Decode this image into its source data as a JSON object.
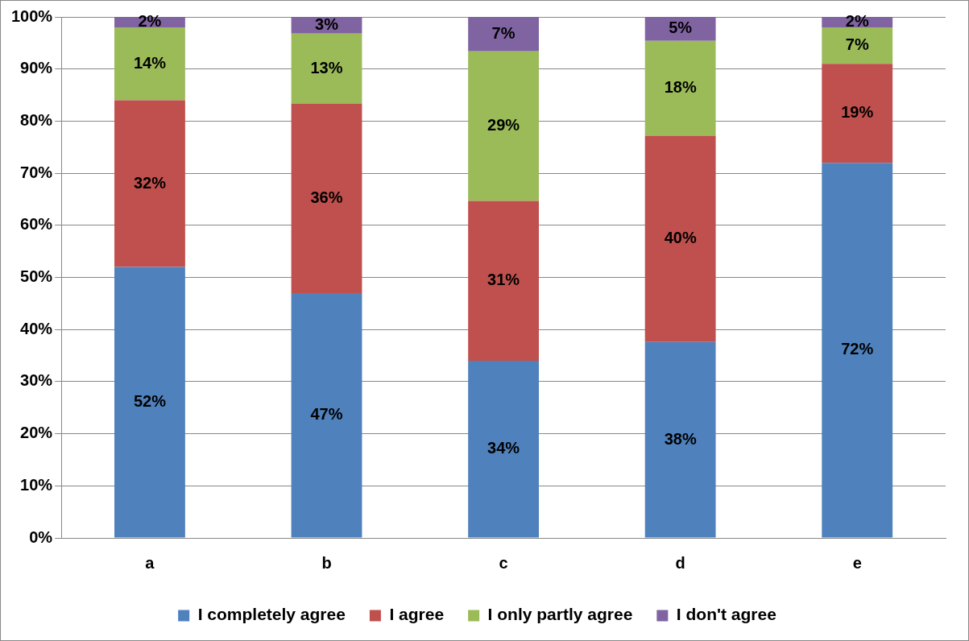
{
  "chart_data": {
    "type": "bar",
    "stacked": true,
    "categories": [
      "a",
      "b",
      "c",
      "d",
      "e"
    ],
    "series": [
      {
        "name": "I completely agree",
        "color": "#4f81bd",
        "values": [
          52,
          47,
          34,
          37.6,
          72
        ],
        "value_labels": [
          "52%",
          "47%",
          "34%",
          "38%",
          "72%"
        ]
      },
      {
        "name": "I agree",
        "color": "#c0504d",
        "values": [
          32,
          36.4,
          30.7,
          39.6,
          19
        ],
        "value_labels": [
          "32%",
          "36%",
          "31%",
          "40%",
          "19%"
        ]
      },
      {
        "name": "I only partly agree",
        "color": "#9bbb59",
        "values": [
          14,
          13.4,
          28.7,
          18.2,
          7
        ],
        "value_labels": [
          "14%",
          "13%",
          "29%",
          "18%",
          "7%"
        ]
      },
      {
        "name": "I don't agree",
        "color": "#8064a2",
        "values": [
          2,
          3.2,
          6.6,
          4.6,
          2
        ],
        "value_labels": [
          "2%",
          "3%",
          "7%",
          "5%",
          "2%"
        ]
      }
    ],
    "ylim": [
      0,
      100
    ],
    "yticks": [
      {
        "value": 0,
        "label": "0%"
      },
      {
        "value": 10,
        "label": "10%"
      },
      {
        "value": 20,
        "label": "20%"
      },
      {
        "value": 30,
        "label": "30%"
      },
      {
        "value": 40,
        "label": "40%"
      },
      {
        "value": 50,
        "label": "50%"
      },
      {
        "value": 60,
        "label": "60%"
      },
      {
        "value": 70,
        "label": "70%"
      },
      {
        "value": 80,
        "label": "80%"
      },
      {
        "value": 90,
        "label": "90%"
      },
      {
        "value": 100,
        "label": "100%"
      }
    ],
    "grid": "y",
    "legend": "bottom"
  }
}
